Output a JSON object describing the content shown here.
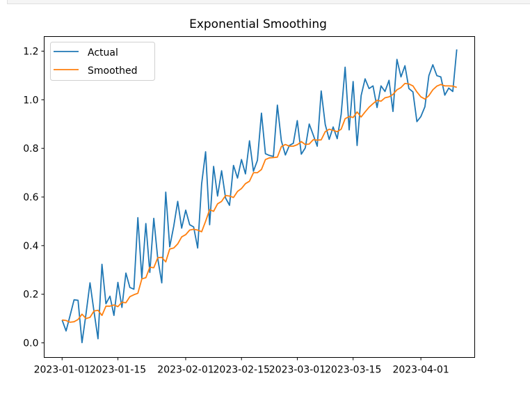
{
  "chart_data": {
    "type": "line",
    "title": "Exponential Smoothing",
    "xlabel": "",
    "ylabel": "",
    "x_start": "2023-01-01",
    "x_step_days": 1,
    "ylim": [
      -0.06,
      1.26
    ],
    "xlim_days": [
      -4.5,
      103.5
    ],
    "yticks": [
      "0.0",
      "0.2",
      "0.4",
      "0.6",
      "0.8",
      "1.0",
      "1.2"
    ],
    "ytick_values": [
      0,
      0.2,
      0.4,
      0.6,
      0.8,
      1.0,
      1.2
    ],
    "xticks": [
      {
        "label": "2023-01-01",
        "day": 0
      },
      {
        "label": "2023-01-15",
        "day": 14
      },
      {
        "label": "2023-02-01",
        "day": 31
      },
      {
        "label": "2023-02-15",
        "day": 45
      },
      {
        "label": "2023-03-01",
        "day": 59
      },
      {
        "label": "2023-03-15",
        "day": 73
      },
      {
        "label": "2023-04-01",
        "day": 90
      }
    ],
    "grid": false,
    "legend": {
      "placement": "top-left",
      "entries": [
        "Actual",
        "Smoothed"
      ]
    },
    "series": [
      {
        "name": "Actual",
        "color": "#1f77b4",
        "values": [
          0.094,
          0.049,
          0.113,
          0.177,
          0.175,
          0.001,
          0.12,
          0.247,
          0.13,
          0.017,
          0.323,
          0.161,
          0.192,
          0.113,
          0.249,
          0.146,
          0.287,
          0.228,
          0.221,
          0.515,
          0.266,
          0.491,
          0.29,
          0.512,
          0.347,
          0.247,
          0.62,
          0.395,
          0.48,
          0.582,
          0.472,
          0.546,
          0.486,
          0.477,
          0.39,
          0.654,
          0.786,
          0.486,
          0.726,
          0.604,
          0.708,
          0.596,
          0.566,
          0.73,
          0.678,
          0.754,
          0.695,
          0.831,
          0.706,
          0.751,
          0.945,
          0.778,
          0.771,
          0.767,
          0.978,
          0.831,
          0.773,
          0.812,
          0.821,
          0.914,
          0.776,
          0.802,
          0.9,
          0.855,
          0.809,
          1.036,
          0.898,
          0.837,
          0.888,
          0.84,
          0.94,
          1.134,
          0.876,
          1.075,
          0.812,
          1.017,
          1.086,
          1.046,
          1.057,
          0.968,
          1.057,
          1.034,
          1.08,
          0.952,
          1.166,
          1.094,
          1.14,
          1.046,
          1.032,
          0.91,
          0.931,
          0.971,
          1.099,
          1.144,
          1.099,
          1.094,
          1.019,
          1.048,
          1.034,
          1.207
        ]
      },
      {
        "name": "Smoothed",
        "color": "#ff7f0e",
        "values": [
          0.094,
          0.092,
          0.085,
          0.087,
          0.096,
          0.118,
          0.1,
          0.105,
          0.131,
          0.134,
          0.113,
          0.151,
          0.151,
          0.156,
          0.149,
          0.167,
          0.165,
          0.19,
          0.198,
          0.204,
          0.263,
          0.268,
          0.311,
          0.309,
          0.35,
          0.352,
          0.333,
          0.386,
          0.39,
          0.407,
          0.436,
          0.445,
          0.464,
          0.467,
          0.464,
          0.457,
          0.5,
          0.548,
          0.541,
          0.572,
          0.582,
          0.606,
          0.604,
          0.598,
          0.623,
          0.635,
          0.655,
          0.665,
          0.7,
          0.7,
          0.713,
          0.754,
          0.761,
          0.762,
          0.764,
          0.807,
          0.816,
          0.809,
          0.809,
          0.815,
          0.828,
          0.816,
          0.818,
          0.836,
          0.834,
          0.835,
          0.869,
          0.879,
          0.874,
          0.869,
          0.879,
          0.922,
          0.931,
          0.927,
          0.95,
          0.929,
          0.95,
          0.969,
          0.984,
          0.998,
          0.994,
          1.008,
          1.012,
          1.022,
          1.041,
          1.05,
          1.067,
          1.065,
          1.057,
          1.032,
          1.012,
          1.003,
          1.017,
          1.041,
          1.056,
          1.063,
          1.057,
          1.057,
          1.056,
          1.051
        ]
      }
    ]
  }
}
